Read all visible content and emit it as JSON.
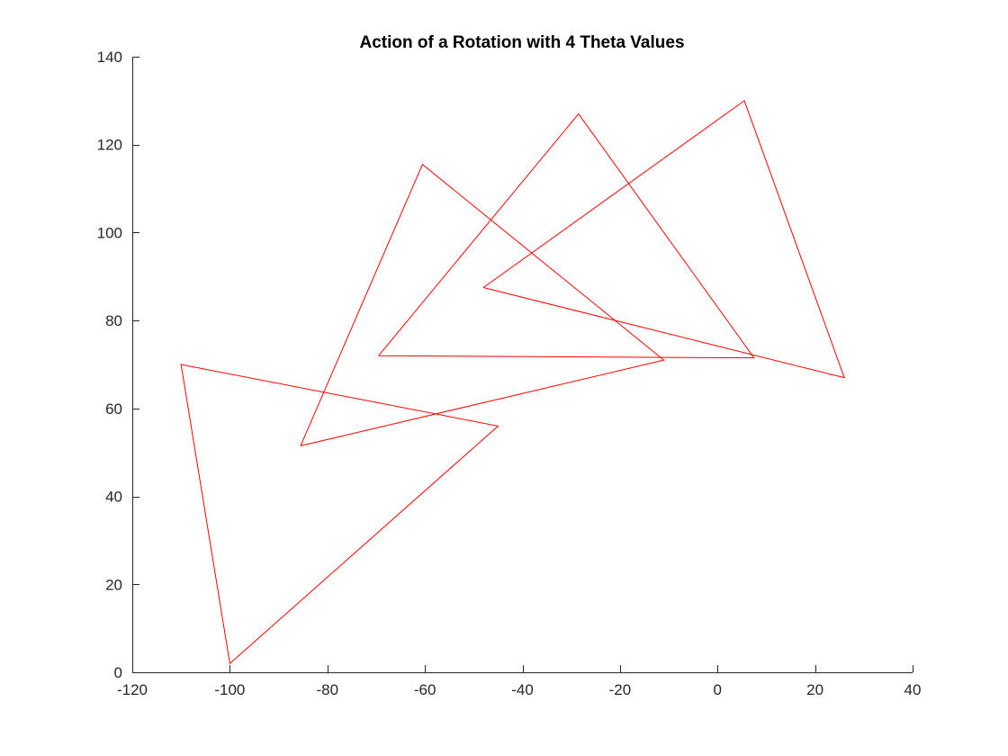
{
  "chart_data": {
    "type": "line",
    "title": "Action of a Rotation with 4 Theta Values",
    "xlabel": "",
    "ylabel": "",
    "xlim": [
      -120,
      40
    ],
    "ylim": [
      0,
      140
    ],
    "xticks": [
      -120,
      -100,
      -80,
      -60,
      -40,
      -20,
      0,
      20,
      40
    ],
    "yticks": [
      0,
      20,
      40,
      60,
      80,
      100,
      120,
      140
    ],
    "grid": false,
    "legend": "none",
    "line_color": "#ff0000",
    "series": [
      {
        "x": [
          -100,
          -110,
          -45,
          -100
        ],
        "y": [
          2,
          70,
          56,
          2
        ]
      },
      {
        "x": [
          -85.5,
          -60.5,
          -11,
          -85.5
        ],
        "y": [
          51.5,
          115.5,
          71,
          51.5
        ]
      },
      {
        "x": [
          -69.5,
          -28.5,
          7.5,
          -69.5
        ],
        "y": [
          72,
          127,
          71.5,
          72
        ]
      },
      {
        "x": [
          -48,
          5.5,
          26,
          -48
        ],
        "y": [
          87.5,
          130,
          67,
          87.5
        ]
      }
    ]
  }
}
